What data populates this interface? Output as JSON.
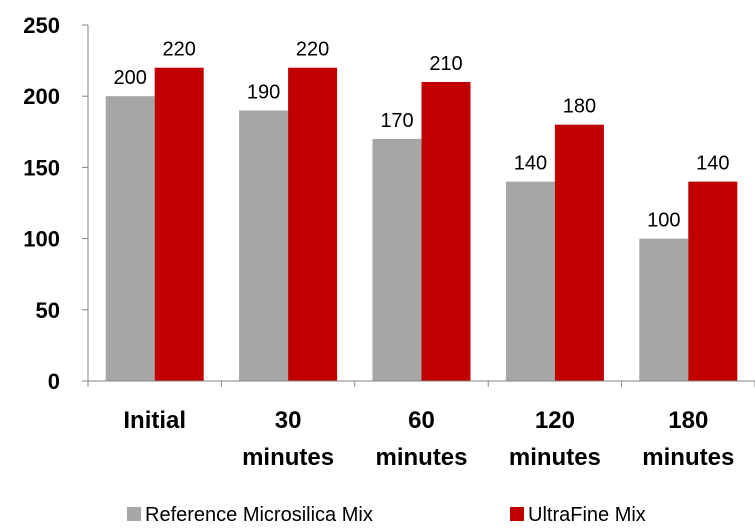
{
  "chart_data": {
    "type": "bar",
    "categories": [
      [
        "Initial"
      ],
      [
        "30",
        "minutes"
      ],
      [
        "60",
        "minutes"
      ],
      [
        "120",
        "minutes"
      ],
      [
        "180",
        "minutes"
      ]
    ],
    "series": [
      {
        "name": "Reference Microsilica Mix",
        "color": "#a6a6a6",
        "values": [
          200,
          190,
          170,
          140,
          100
        ]
      },
      {
        "name": "UltraFine Mix",
        "color": "#c00000",
        "values": [
          220,
          220,
          210,
          180,
          140
        ]
      }
    ],
    "yticks": [
      0,
      50,
      100,
      150,
      200,
      250
    ],
    "ylim": [
      0,
      250
    ],
    "grid": false,
    "legend_position": "bottom",
    "data_labels": true
  }
}
